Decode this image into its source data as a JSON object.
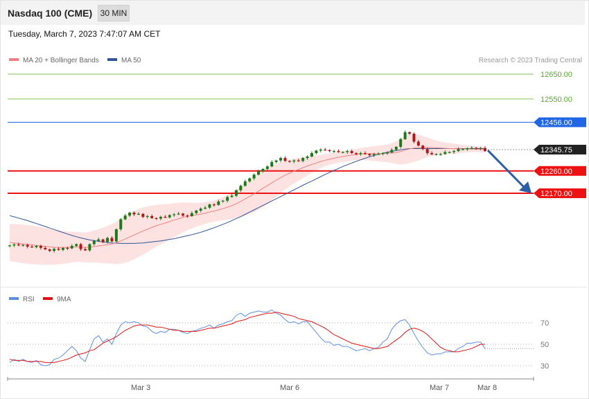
{
  "header": {
    "title": "Nasdaq 100 (CME)",
    "timeframe": "30 MIN"
  },
  "timestamp": "Tuesday, March 7, 2023 7:47:07 AM CET",
  "legend": {
    "ma20": "MA 20 + Bollinger Bands",
    "ma50": "MA 50",
    "rsi": "RSI",
    "rsi_ma": "9MA",
    "credit": "Research © 2023 Trading Central"
  },
  "colors": {
    "resistance": "#7cc35a",
    "pivot": "#1e66e6",
    "support": "#ee1111",
    "last": "#222222",
    "ma20": "#f08080",
    "ma50": "#2f5597",
    "band": "#fde2e2",
    "up_candle": "#1a7a1a",
    "down_candle": "#b01818",
    "arrow": "#2f5ea8",
    "rsi": "#5b8fe0",
    "rsi_ma": "#e01010"
  },
  "chart_data": [
    {
      "type": "candlestick",
      "title": "Nasdaq 100 (CME)",
      "timeframe": "30 MIN",
      "x_ticks": [
        "Mar 3",
        "Mar 6",
        "Mar 7",
        "Mar 8"
      ],
      "ylim": [
        11900,
        12700
      ],
      "levels": [
        {
          "label": "12650.00",
          "value": 12650,
          "kind": "resistance"
        },
        {
          "label": "12550.00",
          "value": 12550,
          "kind": "resistance"
        },
        {
          "label": "12456.00",
          "value": 12456,
          "kind": "pivot"
        },
        {
          "label": "12345.75",
          "value": 12345.75,
          "kind": "last"
        },
        {
          "label": "12260.00",
          "value": 12260,
          "kind": "support"
        },
        {
          "label": "12170.00",
          "value": 12170,
          "kind": "support"
        }
      ],
      "forecast": {
        "from": 12345.75,
        "to": 12170,
        "direction": "down"
      },
      "close": [
        11960,
        11964,
        11960,
        11962,
        11955,
        11953,
        11958,
        11950,
        11944,
        11938,
        11946,
        11942,
        11950,
        11948,
        11958,
        11965,
        11945,
        11940,
        11965,
        11978,
        11984,
        11974,
        11990,
        11976,
        12025,
        12065,
        12080,
        12092,
        12085,
        12087,
        12075,
        12078,
        12070,
        12068,
        12075,
        12073,
        12082,
        12085,
        12088,
        12080,
        12078,
        12090,
        12100,
        12108,
        12112,
        12125,
        12123,
        12137,
        12140,
        12155,
        12160,
        12182,
        12200,
        12218,
        12230,
        12245,
        12258,
        12268,
        12278,
        12296,
        12302,
        12312,
        12300,
        12298,
        12302,
        12300,
        12312,
        12318,
        12332,
        12342,
        12346,
        12344,
        12340,
        12340,
        12336,
        12336,
        12340,
        12332,
        12328,
        12332,
        12328,
        12323,
        12328,
        12328,
        12332,
        12334,
        12345,
        12357,
        12388,
        12416,
        12410,
        12378,
        12362,
        12348,
        12332,
        12327,
        12328,
        12328,
        12336,
        12336,
        12340,
        12348,
        12348,
        12350,
        12353,
        12350,
        12352,
        12340
      ],
      "ma20": [
        11972,
        11970,
        11968,
        11966,
        11964,
        11962,
        11960,
        11958,
        11956,
        11954,
        11952,
        11952,
        11952,
        11952,
        11953,
        11954,
        11953,
        11952,
        11953,
        11955,
        11958,
        11960,
        11963,
        11966,
        11971,
        11978,
        11986,
        11994,
        12002,
        12010,
        12018,
        12025,
        12032,
        12039,
        12045,
        12050,
        12056,
        12062,
        12067,
        12073,
        12077,
        12080,
        12083,
        12086,
        12090,
        12094,
        12098,
        12103,
        12108,
        12114,
        12120,
        12128,
        12137,
        12147,
        12157,
        12168,
        12179,
        12190,
        12201,
        12212,
        12223,
        12233,
        12243,
        12251,
        12259,
        12266,
        12273,
        12280,
        12286,
        12292,
        12298,
        12303,
        12307,
        12311,
        12315,
        12318,
        12321,
        12324,
        12326,
        12328,
        12329,
        12330,
        12330,
        12330,
        12330,
        12331,
        12332,
        12334,
        12338,
        12344,
        12349,
        12352,
        12354,
        12355,
        12355,
        12354,
        12353,
        12352,
        12351,
        12350,
        12350,
        12349,
        12349,
        12349,
        12348,
        12348,
        12347,
        12346
      ],
      "ma50": [
        12080,
        12075,
        12070,
        12065,
        12060,
        12054,
        12048,
        12042,
        12036,
        12030,
        12024,
        12018,
        12012,
        12006,
        12000,
        11995,
        11990,
        11986,
        11982,
        11979,
        11976,
        11974,
        11972,
        11970,
        11969,
        11968,
        11968,
        11968,
        11968,
        11969,
        11970,
        11972,
        11974,
        11976,
        11978,
        11981,
        11984,
        11987,
        11991,
        11995,
        11999,
        12003,
        12008,
        12013,
        12019,
        12025,
        12031,
        12038,
        12045,
        12052,
        12060,
        12068,
        12076,
        12085,
        12094,
        12103,
        12112,
        12121,
        12130,
        12139,
        12148,
        12157,
        12166,
        12175,
        12184,
        12193,
        12202,
        12211,
        12219,
        12228,
        12237,
        12246,
        12254,
        12262,
        12270,
        12278,
        12285,
        12292,
        12299,
        12305,
        12311,
        12317,
        12322,
        12327,
        12331,
        12335,
        12339,
        12342,
        12345,
        12348,
        12350,
        12350,
        12350,
        12350,
        12350,
        12350,
        12350,
        12350,
        12350,
        12350,
        12350,
        12350,
        12350,
        12350,
        12350,
        12350,
        12350,
        12350
      ],
      "bb_half_width": [
        75,
        76,
        77,
        78,
        78,
        78,
        77,
        76,
        74,
        72,
        70,
        68,
        66,
        64,
        62,
        60,
        60,
        60,
        62,
        65,
        68,
        72,
        76,
        80,
        86,
        92,
        96,
        98,
        98,
        97,
        95,
        92,
        88,
        84,
        80,
        76,
        72,
        68,
        64,
        60,
        56,
        52,
        48,
        46,
        44,
        42,
        42,
        44,
        46,
        50,
        54,
        58,
        62,
        66,
        70,
        74,
        76,
        76,
        74,
        70,
        66,
        62,
        58,
        54,
        50,
        46,
        42,
        38,
        34,
        30,
        26,
        24,
        22,
        22,
        22,
        22,
        22,
        22,
        22,
        24,
        26,
        28,
        30,
        32,
        34,
        36,
        40,
        46,
        52,
        56,
        58,
        56,
        52,
        46,
        40,
        34,
        30,
        26,
        24,
        22,
        20,
        18,
        16,
        14,
        13,
        12,
        12,
        12
      ]
    },
    {
      "type": "line",
      "title": "RSI",
      "y_ticks": [
        70,
        50,
        30
      ],
      "ylim": [
        10,
        90
      ],
      "series": [
        {
          "name": "RSI",
          "values": [
            33,
            36,
            34,
            36,
            34,
            33,
            35,
            31,
            30,
            31,
            36,
            37,
            40,
            44,
            48,
            44,
            37,
            34,
            45,
            55,
            58,
            52,
            55,
            50,
            60,
            68,
            71,
            70,
            71,
            70,
            67,
            66,
            62,
            60,
            62,
            61,
            64,
            64,
            63,
            61,
            60,
            62,
            63,
            65,
            66,
            68,
            65,
            68,
            69,
            71,
            72,
            77,
            79,
            76,
            79,
            80,
            81,
            80,
            80,
            82,
            79,
            77,
            73,
            70,
            71,
            69,
            71,
            71,
            66,
            61,
            56,
            52,
            52,
            49,
            50,
            48,
            48,
            46,
            44,
            45,
            46,
            44,
            46,
            47,
            52,
            55,
            64,
            69,
            72,
            73,
            68,
            60,
            53,
            47,
            42,
            40,
            41,
            41,
            43,
            43,
            43,
            46,
            48,
            51,
            51,
            52,
            52,
            46
          ]
        },
        {
          "name": "9MA",
          "values": [
            36,
            35,
            35,
            35,
            34,
            34,
            34,
            34,
            33,
            33,
            33,
            34,
            35,
            36,
            38,
            40,
            41,
            42,
            44,
            45,
            48,
            51,
            53,
            55,
            57,
            60,
            63,
            65,
            67,
            68,
            68,
            68,
            67,
            66,
            66,
            65,
            64,
            63,
            63,
            62,
            62,
            62,
            62,
            63,
            64,
            65,
            65,
            66,
            67,
            68,
            69,
            71,
            72,
            73,
            75,
            76,
            77,
            78,
            79,
            79,
            80,
            79,
            78,
            77,
            76,
            74,
            73,
            72,
            71,
            69,
            67,
            65,
            62,
            59,
            57,
            55,
            53,
            51,
            50,
            49,
            48,
            47,
            46,
            46,
            47,
            48,
            51,
            54,
            57,
            61,
            64,
            65,
            64,
            62,
            59,
            55,
            51,
            47,
            45,
            44,
            43,
            43,
            44,
            45,
            46,
            48,
            50,
            50
          ]
        }
      ]
    }
  ]
}
